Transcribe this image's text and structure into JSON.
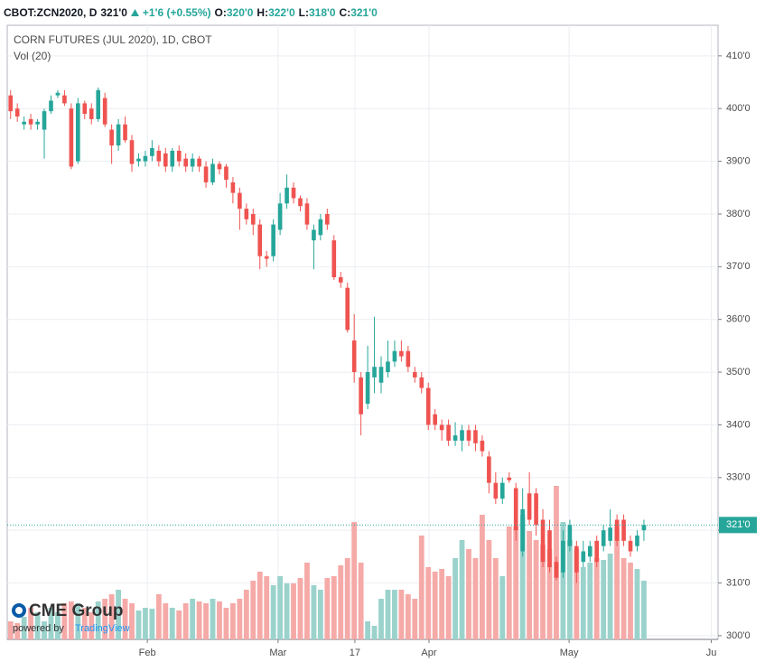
{
  "header": {
    "symbol": "CBOT:ZCN2020, D",
    "price": "321'0",
    "change": "+1'6 (+0.55%)",
    "open_label": "O:",
    "open": "320'0",
    "high_label": "H:",
    "high": "322'0",
    "low_label": "L:",
    "low": "318'0",
    "close_label": "C:",
    "close": "321'0"
  },
  "chart_data": {
    "type": "candlestick",
    "title": "CORN FUTURES (JUL 2020), 1D, CBOT",
    "volume_label": "Vol (20)",
    "up_color": "#26a69a",
    "down_color": "#ef5350",
    "volume_up_color": "#9bd3cc",
    "volume_down_color": "#f5aaa8",
    "open": [
      402.5,
      400,
      397,
      398,
      397,
      396,
      399.5,
      402.5,
      402.5,
      400,
      390,
      401,
      400,
      398,
      402,
      396,
      393,
      397,
      394,
      390,
      390,
      391,
      392,
      391.5,
      389,
      392,
      390.5,
      389,
      390.5,
      389,
      386,
      389.5,
      389,
      386,
      384,
      381,
      380,
      378,
      372,
      372,
      377,
      382,
      385,
      383,
      382,
      375,
      376,
      380,
      375,
      368,
      366,
      356,
      349,
      344,
      349,
      348,
      350,
      352,
      354,
      354,
      350,
      349,
      347,
      342,
      340,
      340,
      337,
      337,
      339,
      339,
      337,
      334,
      329,
      326,
      330,
      328,
      316,
      327,
      327,
      322,
      320,
      314,
      312,
      317,
      317,
      314,
      315,
      318,
      317,
      318,
      322,
      322,
      318,
      317,
      320
    ],
    "high": [
      403.5,
      401,
      398.5,
      399,
      398,
      400,
      402.5,
      403.5,
      403.5,
      401,
      402,
      401.5,
      401,
      404,
      403,
      397,
      398,
      398.5,
      395,
      391.5,
      392,
      394,
      393,
      392.5,
      392.5,
      393,
      391.5,
      391.5,
      391,
      390,
      390.5,
      390,
      389.5,
      387,
      385,
      382,
      381,
      379,
      373,
      379,
      384,
      387.5,
      386,
      383.5,
      383,
      378,
      380,
      381,
      376,
      369,
      367,
      361,
      350,
      355,
      360.5,
      353,
      356,
      356,
      356,
      355,
      351,
      350,
      348,
      343,
      341,
      341,
      340.5,
      340,
      340,
      340,
      338,
      335,
      331,
      330,
      331,
      329,
      328,
      331,
      328,
      324,
      322,
      315,
      320,
      322,
      318,
      318,
      318,
      319,
      321,
      324,
      323,
      323,
      319,
      320,
      322
    ],
    "low": [
      398,
      397.5,
      396,
      396,
      396,
      390.5,
      399,
      402,
      400.5,
      388.5,
      389.5,
      398,
      397,
      397.5,
      396.5,
      389.5,
      392,
      393.5,
      388,
      389,
      389,
      390,
      389,
      388,
      388,
      389,
      388,
      388,
      388,
      385,
      385.5,
      387.5,
      385,
      382,
      377,
      378,
      376,
      369.5,
      370,
      371,
      376,
      381,
      382,
      380.5,
      377,
      369.5,
      375,
      377,
      367.5,
      366,
      357.5,
      348,
      338,
      343,
      346,
      346,
      349,
      351,
      352,
      350,
      348,
      346,
      339,
      339,
      337,
      336,
      336,
      335,
      336,
      335,
      334,
      327,
      325,
      325,
      329,
      318,
      315,
      321,
      319,
      313,
      312,
      310.5,
      311,
      316,
      310,
      313,
      314,
      313,
      316,
      317,
      317,
      317,
      315,
      316,
      318
    ],
    "close": [
      399.5,
      398.5,
      397.5,
      397,
      397.5,
      399.5,
      401.5,
      403,
      401,
      389,
      401,
      399,
      398,
      403.5,
      397,
      393,
      397,
      394,
      389.5,
      390.5,
      391,
      392.5,
      390,
      389,
      392,
      390,
      389,
      390.5,
      389,
      386,
      389.5,
      388.5,
      386.5,
      384,
      381,
      379,
      378,
      372,
      371.5,
      378,
      382,
      385,
      383,
      381.5,
      378,
      377,
      379,
      378,
      368,
      367,
      358,
      350,
      342,
      350,
      351,
      351,
      352,
      354,
      353,
      351,
      349,
      347,
      340,
      340,
      339,
      337,
      338,
      339,
      337,
      336.5,
      335,
      329,
      326,
      329,
      329.5,
      320,
      324,
      322,
      321,
      314,
      313,
      311,
      318,
      321,
      312,
      316,
      317,
      314,
      320,
      320.5,
      318,
      318,
      316,
      319,
      321
    ],
    "volume": [
      20,
      18,
      25,
      35,
      30,
      20,
      35,
      30,
      40,
      42,
      40,
      35,
      30,
      42,
      45,
      50,
      55,
      45,
      40,
      32,
      35,
      34,
      50,
      40,
      35,
      32,
      40,
      45,
      42,
      40,
      45,
      42,
      35,
      40,
      45,
      55,
      65,
      75,
      70,
      60,
      70,
      62,
      62,
      68,
      85,
      60,
      55,
      68,
      70,
      82,
      90,
      130,
      85,
      20,
      15,
      45,
      55,
      55,
      55,
      50,
      45,
      115,
      80,
      75,
      78,
      70,
      90,
      110,
      100,
      90,
      138,
      110,
      90,
      70,
      125,
      125,
      138,
      120,
      110,
      105,
      100,
      170,
      130,
      110,
      100,
      80,
      85,
      90,
      88,
      95,
      125,
      90,
      85,
      78,
      65
    ],
    "last_price_label": "321'0",
    "ylim": [
      299.3,
      415.8
    ],
    "yticks": [
      {
        "value": 300,
        "label": "300'0"
      },
      {
        "value": 310,
        "label": "310'0"
      },
      {
        "value": 320,
        "label": "320'0"
      },
      {
        "value": 330,
        "label": "330'0"
      },
      {
        "value": 340,
        "label": "340'0"
      },
      {
        "value": 350,
        "label": "350'0"
      },
      {
        "value": 360,
        "label": "360'0"
      },
      {
        "value": 370,
        "label": "370'0"
      },
      {
        "value": 380,
        "label": "380'0"
      },
      {
        "value": 390,
        "label": "390'0"
      },
      {
        "value": 400,
        "label": "400'0"
      },
      {
        "value": 410,
        "label": "410'0"
      }
    ],
    "xlim": [
      -0.5,
      105
    ],
    "xticks": [
      {
        "value": 20.3,
        "label": "Feb"
      },
      {
        "value": 39.7,
        "label": "Mar"
      },
      {
        "value": 51.1,
        "label": "17"
      },
      {
        "value": 62.1,
        "label": "Apr"
      },
      {
        "value": 82.9,
        "label": "May"
      },
      {
        "value": 104,
        "label": "Ju"
      }
    ],
    "grid": true,
    "logo": {
      "brand": "CME Group",
      "powered": "powered by",
      "platform": "TradingView"
    }
  }
}
